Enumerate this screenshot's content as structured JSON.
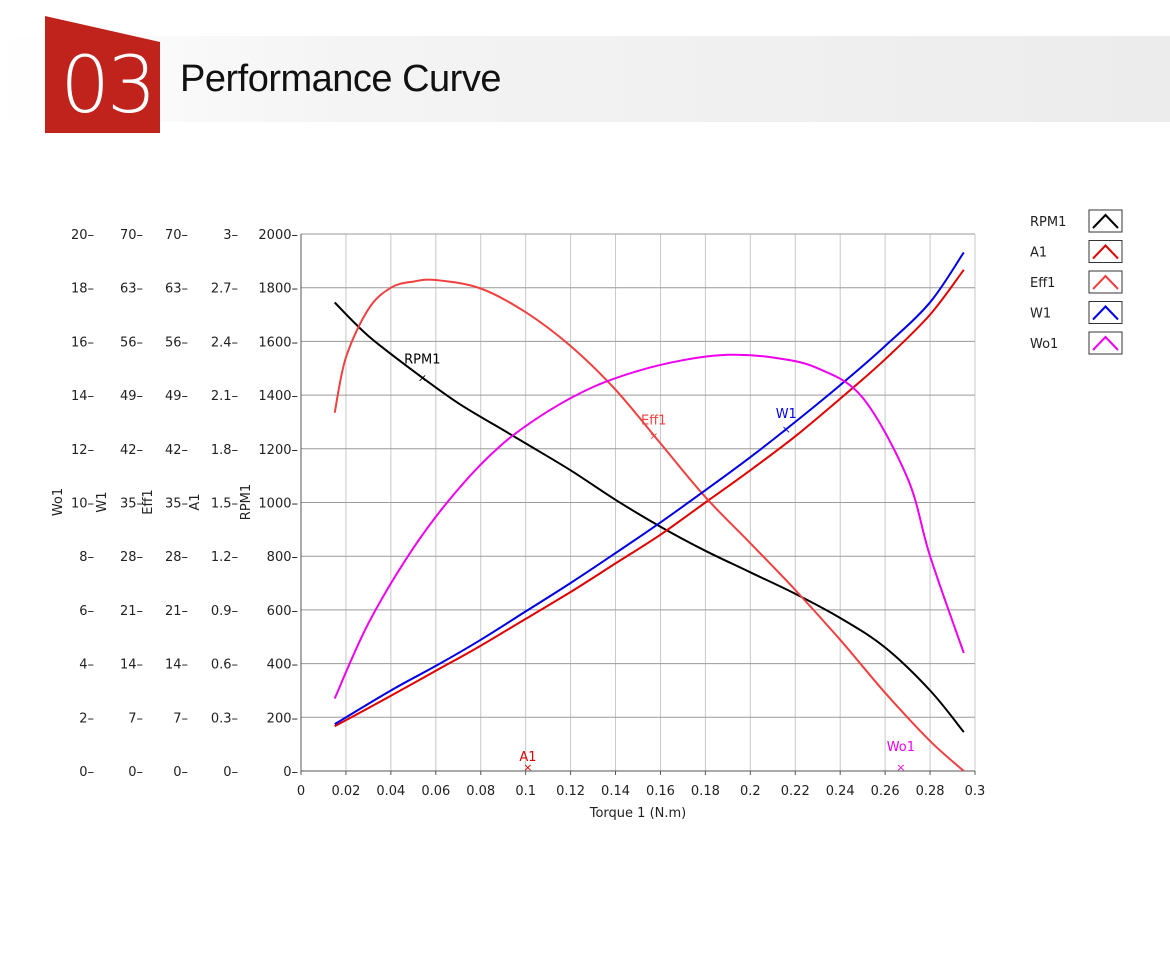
{
  "header": {
    "section_number": "03",
    "title": "Performance Curve",
    "badge_color": "#c0231c"
  },
  "chart_data": {
    "type": "line",
    "xlabel": "Torque 1 (N.m)",
    "xlim": [
      0,
      0.3
    ],
    "x_ticks": [
      "0",
      "0.02",
      "0.04",
      "0.06",
      "0.08",
      "0.1",
      "0.12",
      "0.14",
      "0.16",
      "0.18",
      "0.2",
      "0.22",
      "0.24",
      "0.26",
      "0.28",
      "0.3"
    ],
    "grid": true,
    "legend_position": "right",
    "axes": [
      {
        "label": "Wo1",
        "ticks": [
          "0",
          "2",
          "4",
          "6",
          "8",
          "10",
          "12",
          "14",
          "16",
          "18",
          "20"
        ]
      },
      {
        "label": "W1",
        "ticks": [
          "0",
          "7",
          "14",
          "21",
          "28",
          "35",
          "42",
          "49",
          "56",
          "63",
          "70"
        ]
      },
      {
        "label": "Eff1",
        "ticks": [
          "0",
          "7",
          "14",
          "21",
          "28",
          "35",
          "42",
          "49",
          "56",
          "63",
          "70"
        ]
      },
      {
        "label": "A1",
        "ticks": [
          "0",
          "0.3",
          "0.6",
          "0.9",
          "1.2",
          "1.5",
          "1.8",
          "2.1",
          "2.4",
          "2.7",
          "3"
        ]
      },
      {
        "label": "RPM1",
        "ticks": [
          "0",
          "200",
          "400",
          "600",
          "800",
          "1000",
          "1200",
          "1400",
          "1600",
          "1800",
          "2000"
        ]
      }
    ],
    "ylim": [
      0,
      2000
    ],
    "series": [
      {
        "name": "RPM1",
        "axis": "RPM1",
        "color": "#000000",
        "x": [
          0.015,
          0.03,
          0.05,
          0.07,
          0.09,
          0.1,
          0.12,
          0.14,
          0.16,
          0.18,
          0.2,
          0.22,
          0.24,
          0.26,
          0.28,
          0.295
        ],
        "y": [
          1745,
          1620,
          1490,
          1370,
          1270,
          1220,
          1120,
          1010,
          910,
          820,
          740,
          660,
          570,
          460,
          300,
          145
        ],
        "marker": {
          "x": 0.054,
          "label": "RPM1"
        }
      },
      {
        "name": "A1",
        "axis": "A1",
        "color": "#e00000",
        "x": [
          0.015,
          0.04,
          0.06,
          0.08,
          0.1,
          0.12,
          0.14,
          0.16,
          0.18,
          0.2,
          0.22,
          0.24,
          0.26,
          0.28,
          0.295
        ],
        "y": [
          0.25,
          0.42,
          0.56,
          0.7,
          0.85,
          1.0,
          1.16,
          1.32,
          1.5,
          1.68,
          1.87,
          2.08,
          2.3,
          2.55,
          2.8
        ],
        "marker": {
          "x": 0.101,
          "label": "A1"
        }
      },
      {
        "name": "Eff1",
        "axis": "Eff1",
        "color": "#f04040",
        "x": [
          0.015,
          0.02,
          0.03,
          0.04,
          0.05,
          0.06,
          0.08,
          0.1,
          0.12,
          0.14,
          0.16,
          0.18,
          0.2,
          0.22,
          0.24,
          0.26,
          0.28,
          0.295
        ],
        "y": [
          46.7,
          53.9,
          60.2,
          63.0,
          63.8,
          64.0,
          62.9,
          59.8,
          55.4,
          49.7,
          42.7,
          35.7,
          29.7,
          23.6,
          17.1,
          10.2,
          3.9,
          0.0
        ],
        "marker": {
          "x": 0.157,
          "label": "Eff1"
        }
      },
      {
        "name": "W1",
        "axis": "W1",
        "color": "#0000e6",
        "x": [
          0.015,
          0.04,
          0.06,
          0.08,
          0.1,
          0.12,
          0.14,
          0.16,
          0.18,
          0.2,
          0.22,
          0.24,
          0.26,
          0.28,
          0.295
        ],
        "y": [
          6.1,
          10.5,
          13.7,
          17.1,
          20.8,
          24.5,
          28.4,
          32.4,
          36.6,
          40.9,
          45.5,
          50.3,
          55.4,
          61.1,
          67.6
        ],
        "marker": {
          "x": 0.216,
          "label": "W1"
        }
      },
      {
        "name": "Wo1",
        "axis": "Wo1",
        "color": "#ee00ee",
        "x": [
          0.015,
          0.03,
          0.05,
          0.07,
          0.09,
          0.11,
          0.13,
          0.15,
          0.17,
          0.19,
          0.21,
          0.23,
          0.25,
          0.27,
          0.28,
          0.295
        ],
        "y": [
          2.7,
          5.5,
          8.3,
          10.5,
          12.2,
          13.4,
          14.3,
          14.9,
          15.3,
          15.5,
          15.4,
          15.0,
          13.9,
          10.9,
          8.0,
          4.4
        ],
        "marker": {
          "x": 0.267,
          "label": "Wo1"
        }
      }
    ]
  }
}
